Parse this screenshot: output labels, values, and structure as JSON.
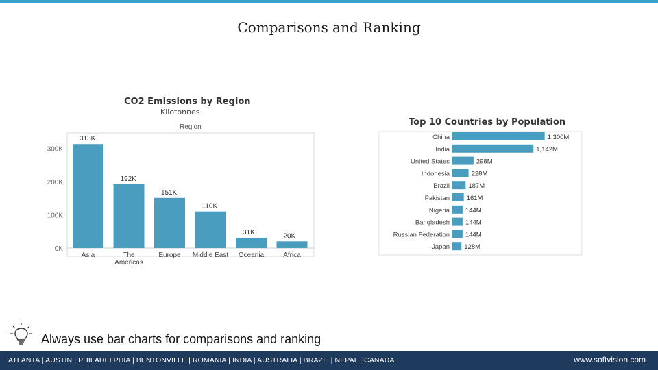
{
  "slide": {
    "title": "Comparisons and Ranking",
    "tip": "Always use bar charts for comparisons and ranking",
    "accent_color": "#3aa3c8"
  },
  "footer": {
    "locations": "ATLANTA | AUSTIN | PHILADELPHIA | BENTONVILLE | ROMANIA | INDIA | AUSTRALIA | BRAZIL | NEPAL | CANADA",
    "website": "www.softvision.com",
    "color": "#1e3a5c"
  },
  "icons": {
    "tip": "lightbulb-icon"
  },
  "chart_data": [
    {
      "type": "bar",
      "title": "CO2 Emissions by Region",
      "subtitle": "Kilotonnes",
      "header": "Region",
      "categories": [
        "Asia",
        "The Americas",
        "Europe",
        "Middle East",
        "Oceania",
        "Africa"
      ],
      "values": [
        313,
        192,
        151,
        110,
        31,
        20
      ],
      "data_labels": [
        "313K",
        "192K",
        "151K",
        "110K",
        "31K",
        "20K"
      ],
      "yticks": [
        "300K",
        "200K",
        "100K",
        "0K"
      ],
      "ytick_values": [
        300,
        200,
        100,
        0
      ],
      "ylim": [
        0,
        330
      ],
      "bar_color": "#4a9dbf",
      "grid": false
    },
    {
      "type": "bar",
      "orientation": "horizontal",
      "title": "Top 10 Countries by Population",
      "categories": [
        "China",
        "India",
        "United States",
        "Indonesia",
        "Brazil",
        "Pakistan",
        "Nigeria",
        "Bangladesh",
        "Russian Federation",
        "Japan"
      ],
      "values": [
        1300,
        1142,
        298,
        228,
        187,
        161,
        144,
        144,
        144,
        128
      ],
      "data_labels": [
        "1,300M",
        "1,142M",
        "298M",
        "228M",
        "187M",
        "161M",
        "144M",
        "144M",
        "144M",
        "128M"
      ],
      "xlim": [
        0,
        1400
      ],
      "bar_color": "#4a9dbf",
      "grid": false
    }
  ]
}
